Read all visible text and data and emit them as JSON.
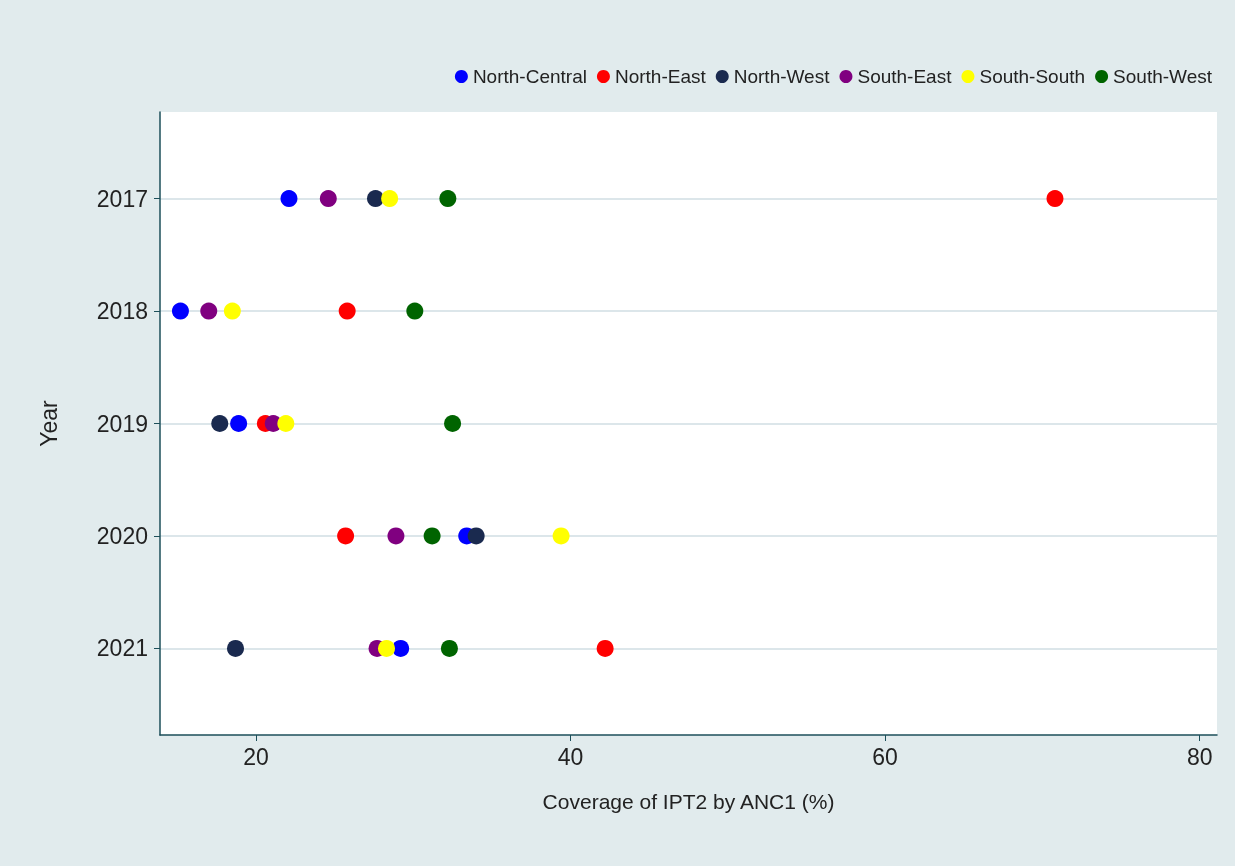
{
  "chart_data": {
    "type": "scatter",
    "xlabel": "Coverage of IPT2 by ANC1 (%)",
    "ylabel": "Year",
    "categories": [
      "2017",
      "2018",
      "2019",
      "2020",
      "2021"
    ],
    "series": [
      {
        "name": "North-Central",
        "color": "#0000ff",
        "values": [
          22.1,
          15.2,
          18.9,
          33.4,
          29.2
        ]
      },
      {
        "name": "North-East",
        "color": "#ff0000",
        "values": [
          70.8,
          25.8,
          20.6,
          25.7,
          42.2
        ]
      },
      {
        "name": "North-West",
        "color": "#1a2a4f",
        "values": [
          27.6,
          null,
          17.7,
          34.0,
          18.7
        ]
      },
      {
        "name": "South-East",
        "color": "#800080",
        "values": [
          24.6,
          17.0,
          21.1,
          28.9,
          27.7
        ]
      },
      {
        "name": "South-South",
        "color": "#ffff00",
        "values": [
          28.5,
          18.5,
          21.9,
          39.4,
          28.3
        ]
      },
      {
        "name": "South-West",
        "color": "#006400",
        "values": [
          32.2,
          30.1,
          32.5,
          31.2,
          32.3
        ]
      }
    ],
    "orientation": "horizontal",
    "xlim": [
      13.9,
      81.1
    ],
    "xticks": [
      20,
      40,
      60,
      80
    ],
    "grid": "y",
    "legend": "top",
    "marker": "circle"
  }
}
